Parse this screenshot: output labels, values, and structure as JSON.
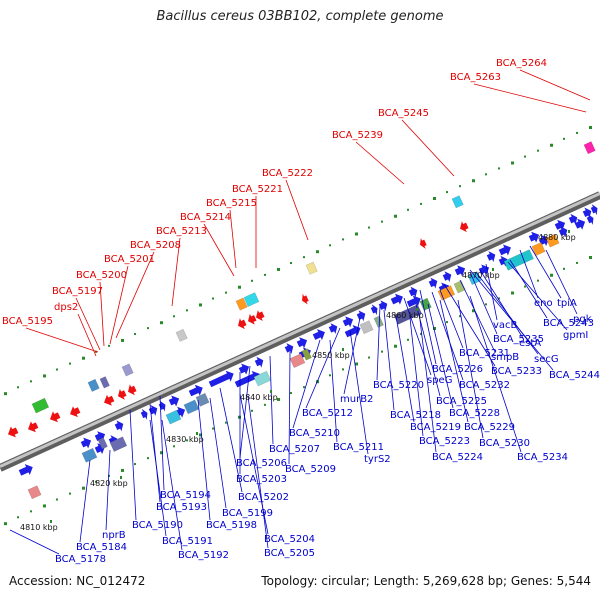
{
  "title": "Bacillus cereus 03BB102, complete genome",
  "footer": {
    "accession": "Accession: NC_012472",
    "topology": "Topology: circular; Length: 5,269,628 bp; Genes: 5,544"
  },
  "colors": {
    "upper_label": "#e00000",
    "lower_label": "#0000cc",
    "backbone": "#8a8a8a",
    "forward_gene": "#1f1fe6",
    "reverse_gene": "#ee1111"
  },
  "ticks": [
    "4810 kbp",
    "4820 kbp",
    "4830 kbp",
    "4840 kbp",
    "4850 kbp",
    "4860 kbp",
    "4870 kbp",
    "4880 kbp"
  ],
  "upper_labels": [
    "BCA_5264",
    "BCA_5263",
    "BCA_5245",
    "BCA_5239",
    "BCA_5222",
    "BCA_5221",
    "BCA_5215",
    "BCA_5214",
    "BCA_5213",
    "BCA_5208",
    "BCA_5201",
    "BCA_5200",
    "BCA_5197",
    "dps2",
    "BCA_5195"
  ],
  "lower_labels": [
    "tpiA",
    "eno",
    "pgk",
    "BCA_5243",
    "gpmI",
    "vacB",
    "estA",
    "BCA_5235",
    "secG",
    "smpB",
    "BCA_5244",
    "BCA_5231",
    "BCA_5233",
    "BCA_5226",
    "BCA_5232",
    "speG",
    "BCA_5220",
    "BCA_5225",
    "murB2",
    "BCA_5218",
    "BCA_5228",
    "BCA_5212",
    "BCA_5219",
    "BCA_5229",
    "BCA_5210",
    "BCA_5211",
    "BCA_5223",
    "BCA_5230",
    "BCA_5207",
    "tyrS2",
    "BCA_5224",
    "BCA_5234",
    "BCA_5209",
    "BCA_5206",
    "BCA_5203",
    "BCA_5194",
    "BCA_5202",
    "BCA_5193",
    "BCA_5199",
    "BCA_5190",
    "BCA_5198",
    "BCA_5191",
    "BCA_5204",
    "BCA_5192",
    "BCA_5205",
    "nprB",
    "BCA_5184",
    "BCA_5178"
  ]
}
